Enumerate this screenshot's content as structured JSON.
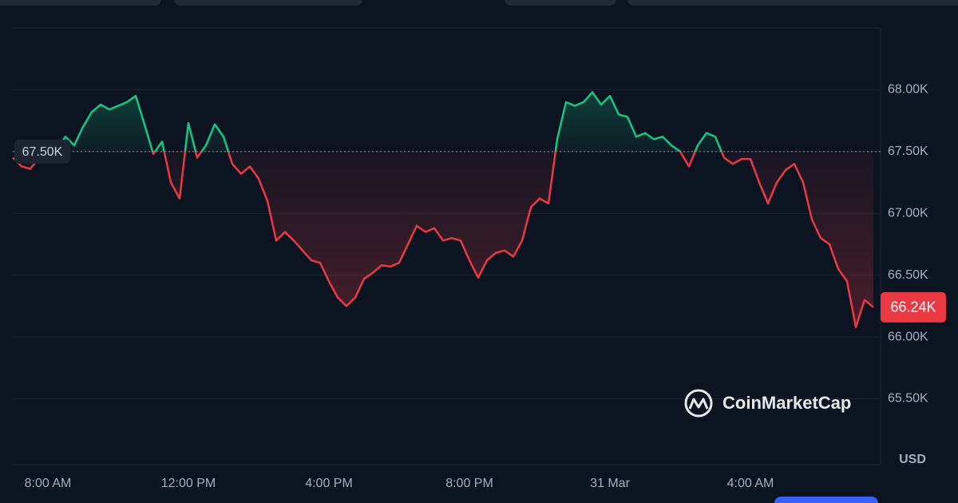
{
  "chart_data": {
    "type": "line",
    "categories": [
      null,
      null,
      null,
      null,
      "8:00 AM",
      null,
      null,
      null,
      null,
      null,
      null,
      null,
      null,
      null,
      null,
      null,
      null,
      null,
      null,
      null,
      "12:00 PM",
      null,
      null,
      null,
      null,
      null,
      null,
      null,
      null,
      null,
      null,
      null,
      null,
      null,
      null,
      null,
      "4:00 PM",
      null,
      null,
      null,
      null,
      null,
      null,
      null,
      null,
      null,
      null,
      null,
      null,
      null,
      null,
      null,
      "8:00 PM",
      null,
      null,
      null,
      null,
      null,
      null,
      null,
      null,
      null,
      null,
      null,
      null,
      null,
      null,
      null,
      "31 Mar",
      null,
      null,
      null,
      null,
      null,
      null,
      null,
      null,
      null,
      null,
      null,
      null,
      null,
      null,
      null,
      "4:00 AM",
      null,
      null,
      null,
      null,
      null,
      null,
      null,
      null,
      null,
      null,
      null,
      null,
      null,
      null
    ],
    "values": [
      67450,
      67380,
      67360,
      67450,
      67470,
      67520,
      67620,
      67550,
      67700,
      67820,
      67880,
      67840,
      67870,
      67900,
      67950,
      67720,
      67480,
      67580,
      67250,
      67120,
      67730,
      67450,
      67550,
      67720,
      67620,
      67400,
      67320,
      67380,
      67280,
      67100,
      66780,
      66850,
      66780,
      66700,
      66620,
      66600,
      66450,
      66320,
      66250,
      66320,
      66470,
      66520,
      66580,
      66570,
      66600,
      66750,
      66900,
      66850,
      66880,
      66780,
      66800,
      66780,
      66620,
      66480,
      66620,
      66680,
      66700,
      66650,
      66780,
      67050,
      67120,
      67080,
      67600,
      67900,
      67870,
      67900,
      67980,
      67880,
      67950,
      67800,
      67780,
      67620,
      67650,
      67600,
      67620,
      67550,
      67500,
      67380,
      67550,
      67650,
      67620,
      67450,
      67400,
      67440,
      67440,
      67250,
      67080,
      67250,
      67350,
      67400,
      67250,
      66950,
      66800,
      66750,
      66550,
      66450,
      66080,
      66300,
      66240
    ],
    "up_color": "#16c784",
    "down_color": "#ea3943",
    "ylim": [
      64980,
      68500
    ],
    "yticks": [
      {
        "value": 65500,
        "label": "65.50K"
      },
      {
        "value": 66000,
        "label": "66.00K"
      },
      {
        "value": 66500,
        "label": "66.50K"
      },
      {
        "value": 67000,
        "label": "67.00K"
      },
      {
        "value": 67500,
        "label": "67.50K"
      },
      {
        "value": 68000,
        "label": "68.00K"
      }
    ],
    "grid": true,
    "baseline": {
      "value": 67500,
      "label": "67.50K"
    },
    "current_price": {
      "value": 66240,
      "label": "66.24K"
    },
    "y_unit": "USD",
    "watermark": "CoinMarketCap"
  }
}
